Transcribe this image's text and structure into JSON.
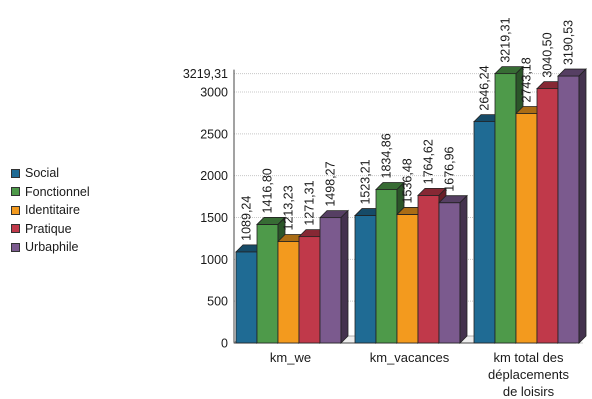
{
  "chart_data": {
    "type": "bar",
    "title": "",
    "xlabel": "",
    "ylabel": "",
    "categories": [
      "km_we",
      "km_vacances",
      "km total des déplacements de loisirs"
    ],
    "category_label_lines": [
      [
        "km_we"
      ],
      [
        "km_vacances"
      ],
      [
        "km total des",
        "déplacements",
        "de loisirs"
      ]
    ],
    "series": [
      {
        "name": "Social",
        "color": "#1f6b94",
        "values": [
          1089.24,
          1523.21,
          2646.24
        ],
        "labels": [
          "1089,24",
          "1523,21",
          "2646,24"
        ]
      },
      {
        "name": "Fonctionnel",
        "color": "#4e9a4a",
        "values": [
          1416.8,
          1834.86,
          3219.31
        ],
        "labels": [
          "1416,80",
          "1834,86",
          "3219,31"
        ]
      },
      {
        "name": "Identitaire",
        "color": "#f39a1e",
        "values": [
          1213.23,
          1536.48,
          2743.18
        ],
        "labels": [
          "1213,23",
          "1536,48",
          "2743,18"
        ]
      },
      {
        "name": "Pratique",
        "color": "#c0394a",
        "values": [
          1271.31,
          1764.62,
          3040.5
        ],
        "labels": [
          "1271,31",
          "1764,62",
          "3040,50"
        ]
      },
      {
        "name": "Urbaphile",
        "color": "#7b5a8e",
        "values": [
          1498.27,
          1676.96,
          3190.53
        ],
        "labels": [
          "1498,27",
          "1676,96",
          "3190,53"
        ]
      }
    ],
    "yticks": [
      0,
      500,
      1000,
      1500,
      2000,
      2500,
      3000
    ],
    "extra_tick": {
      "value": 3219.31,
      "label": "3219,31"
    },
    "ylim": [
      0,
      3219.31
    ],
    "grid": true,
    "legend_position": "left"
  }
}
